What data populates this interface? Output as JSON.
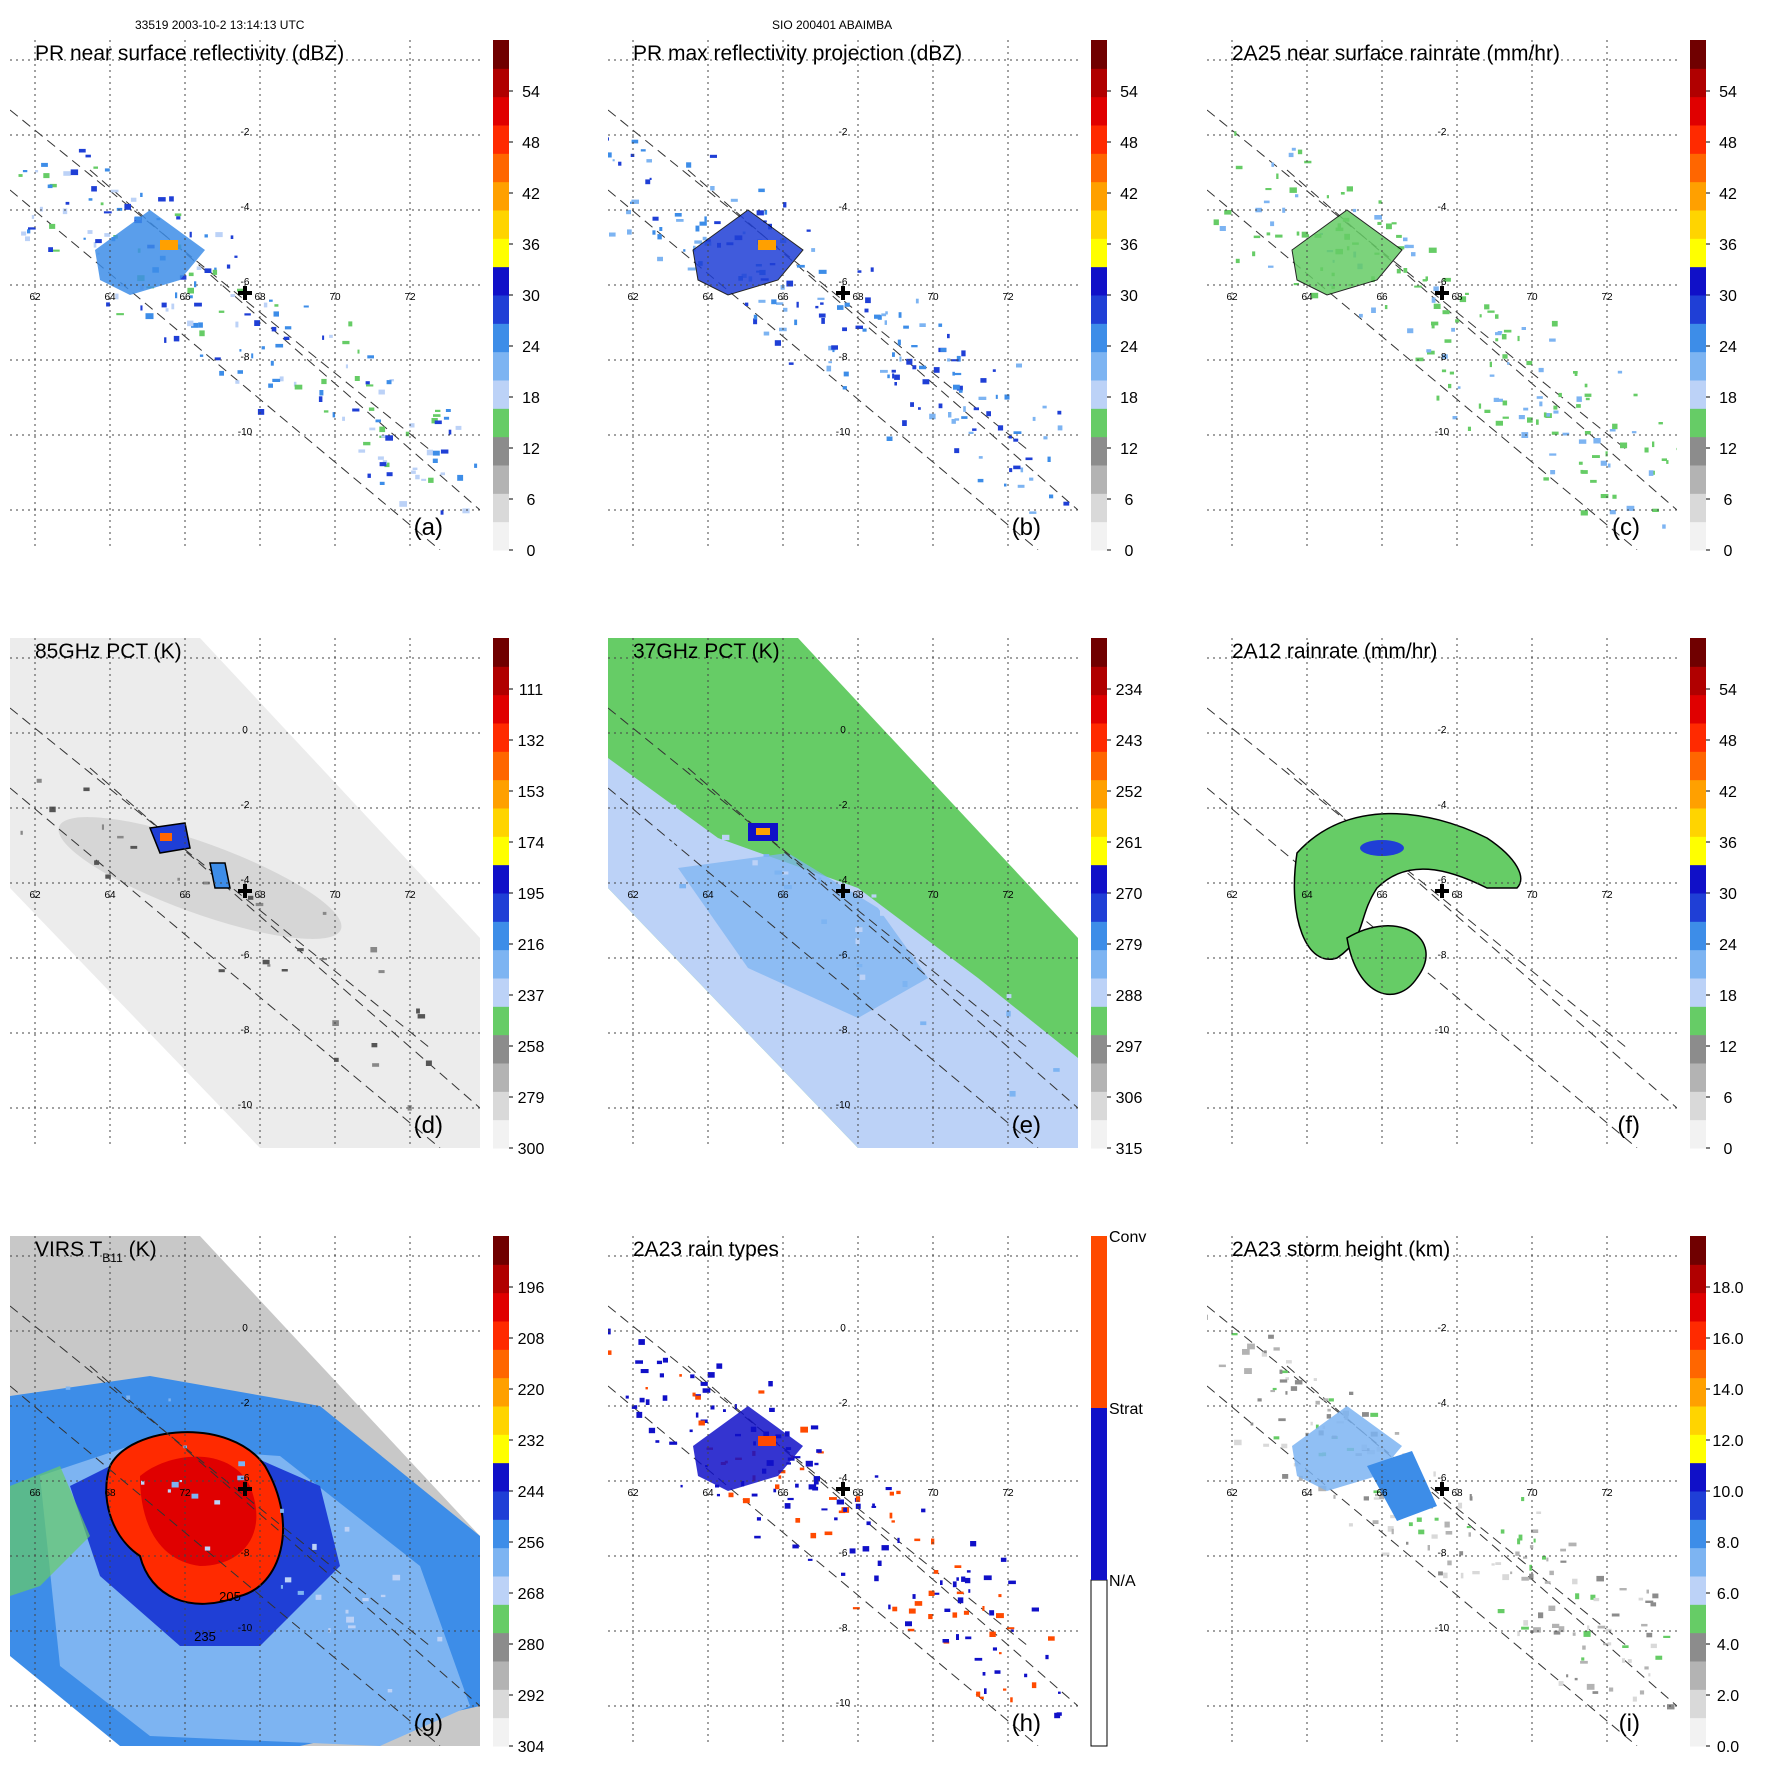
{
  "header": {
    "left": "33519 2003-10-2 13:14:13 UTC",
    "center": "SIO 200401 ABAIMBA"
  },
  "colors": {
    "scale": [
      "#f2f2f2",
      "#d9d9d9",
      "#b3b3b3",
      "#8c8c8c",
      "#66cc66",
      "#bcd2f7",
      "#7db4f2",
      "#3d8de8",
      "#1f3fd6",
      "#1010c8",
      "#ffff00",
      "#ffd400",
      "#ffa000",
      "#ff6600",
      "#ff2a00",
      "#e00000",
      "#b00000",
      "#700000"
    ],
    "raintype": [
      "#ffffff",
      "#1010c8",
      "#ff4a00"
    ]
  },
  "panels": [
    {
      "id": "a",
      "title": "PR near surface reflectivity (dBZ)",
      "label": "(a)",
      "colorbar_ticks": [
        "0",
        "6",
        "12",
        "18",
        "24",
        "30",
        "36",
        "42",
        "48",
        "54"
      ],
      "x_ticks": [
        "62",
        "64",
        "66",
        "68",
        "70",
        "72"
      ],
      "y_ticks": [
        "-2",
        "-4",
        "-6",
        "-8",
        "-10"
      ],
      "field": "swath"
    },
    {
      "id": "b",
      "title": "PR max reflectivity projection (dBZ)",
      "label": "(b)",
      "colorbar_ticks": [
        "0",
        "6",
        "12",
        "18",
        "24",
        "30",
        "36",
        "42",
        "48",
        "54"
      ],
      "x_ticks": [
        "62",
        "64",
        "66",
        "68",
        "70",
        "72"
      ],
      "y_ticks": [
        "-2",
        "-4",
        "-6",
        "-8",
        "-10"
      ],
      "field": "swath"
    },
    {
      "id": "c",
      "title": "2A25 near surface rainrate (mm/hr)",
      "label": "(c)",
      "colorbar_ticks": [
        "0",
        "6",
        "12",
        "18",
        "24",
        "30",
        "36",
        "42",
        "48",
        "54"
      ],
      "x_ticks": [
        "62",
        "64",
        "66",
        "68",
        "70",
        "72"
      ],
      "y_ticks": [
        "-2",
        "-4",
        "-6",
        "-8",
        "-10"
      ],
      "field": "swath"
    },
    {
      "id": "d",
      "title": "85GHz PCT (K)",
      "label": "(d)",
      "colorbar_ticks": [
        "300",
        "279",
        "258",
        "237",
        "216",
        "195",
        "174",
        "153",
        "132",
        "111"
      ],
      "x_ticks": [
        "62",
        "64",
        "66",
        "68",
        "70",
        "72"
      ],
      "y_ticks": [
        "0",
        "-2",
        "-4",
        "-6",
        "-8",
        "-10"
      ],
      "field": "wide"
    },
    {
      "id": "e",
      "title": "37GHz PCT (K)",
      "label": "(e)",
      "colorbar_ticks": [
        "315",
        "306",
        "297",
        "288",
        "279",
        "270",
        "261",
        "252",
        "243",
        "234"
      ],
      "x_ticks": [
        "62",
        "64",
        "66",
        "68",
        "70",
        "72"
      ],
      "y_ticks": [
        "0",
        "-2",
        "-4",
        "-6",
        "-8",
        "-10"
      ],
      "field": "wide"
    },
    {
      "id": "f",
      "title": "2A12 rainrate (mm/hr)",
      "label": "(f)",
      "colorbar_ticks": [
        "0",
        "6",
        "12",
        "18",
        "24",
        "30",
        "36",
        "42",
        "48",
        "54"
      ],
      "x_ticks": [
        "62",
        "64",
        "66",
        "68",
        "70",
        "72"
      ],
      "y_ticks": [
        "-2",
        "-4",
        "-6",
        "-8",
        "-10"
      ],
      "field": "green"
    },
    {
      "id": "g",
      "title": "VIRS T",
      "title_sub": "B11",
      "title_suffix": " (K)",
      "label": "(g)",
      "colorbar_ticks": [
        "304",
        "292",
        "280",
        "268",
        "256",
        "244",
        "232",
        "220",
        "208",
        "196"
      ],
      "x_ticks": [
        "66",
        "68",
        "72"
      ],
      "y_ticks": [
        "0",
        "-2",
        "-6",
        "-8",
        "-10"
      ],
      "contour_labels": [
        "205",
        "235"
      ],
      "field": "virs"
    },
    {
      "id": "h",
      "title": "2A23 rain types",
      "label": "(h)",
      "colorbar_ticks": [
        "N/A",
        "Strat",
        "Conv"
      ],
      "x_ticks": [
        "62",
        "64",
        "66",
        "68",
        "70",
        "72"
      ],
      "y_ticks": [
        "0",
        "-2",
        "-4",
        "-6",
        "-8",
        "-10"
      ],
      "field": "raintype"
    },
    {
      "id": "i",
      "title": "2A23 storm height (km)",
      "label": "(i)",
      "colorbar_ticks": [
        "0.0",
        "2.0",
        "4.0",
        "6.0",
        "8.0",
        "10.0",
        "12.0",
        "14.0",
        "16.0",
        "18.0"
      ],
      "x_ticks": [
        "62",
        "64",
        "66",
        "68",
        "70",
        "72"
      ],
      "y_ticks": [
        "-2",
        "-4",
        "-6",
        "-8",
        "-10"
      ],
      "field": "swath"
    }
  ]
}
